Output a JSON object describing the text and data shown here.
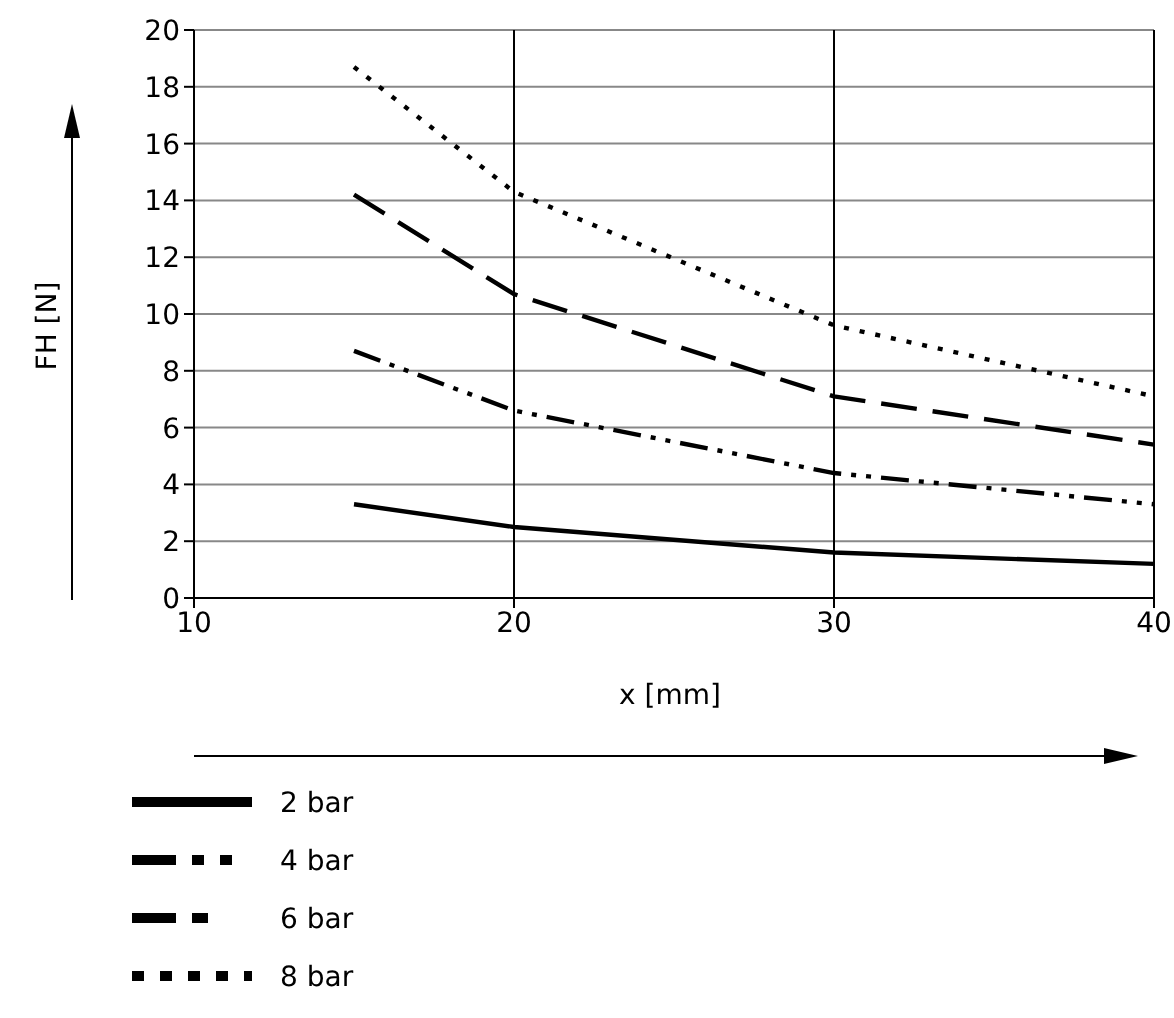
{
  "chart_data": {
    "type": "line",
    "xlabel": "x [mm]",
    "ylabel": "FH [N]",
    "x": [
      15,
      20,
      30,
      40
    ],
    "xlim": [
      10,
      40
    ],
    "xticks": [
      10,
      20,
      30,
      40
    ],
    "ylim": [
      0,
      20
    ],
    "yticks": [
      0,
      2,
      4,
      6,
      8,
      10,
      12,
      14,
      16,
      18,
      20
    ],
    "grid": true,
    "legend": "bottom",
    "marker": "none",
    "series": [
      {
        "name": "2 bar",
        "color": "#000000",
        "line_style": "solid",
        "values": [
          3.3,
          2.5,
          1.6,
          1.2
        ]
      },
      {
        "name": "4 bar",
        "color": "#000000",
        "line_style": "dashdotdot",
        "values": [
          8.7,
          6.6,
          4.4,
          3.3
        ]
      },
      {
        "name": "6 bar",
        "color": "#000000",
        "line_style": "dashed",
        "values": [
          14.2,
          10.7,
          7.1,
          5.4
        ]
      },
      {
        "name": "8 bar",
        "color": "#000000",
        "line_style": "dotted",
        "values": [
          18.7,
          14.3,
          9.6,
          7.1
        ]
      }
    ]
  }
}
